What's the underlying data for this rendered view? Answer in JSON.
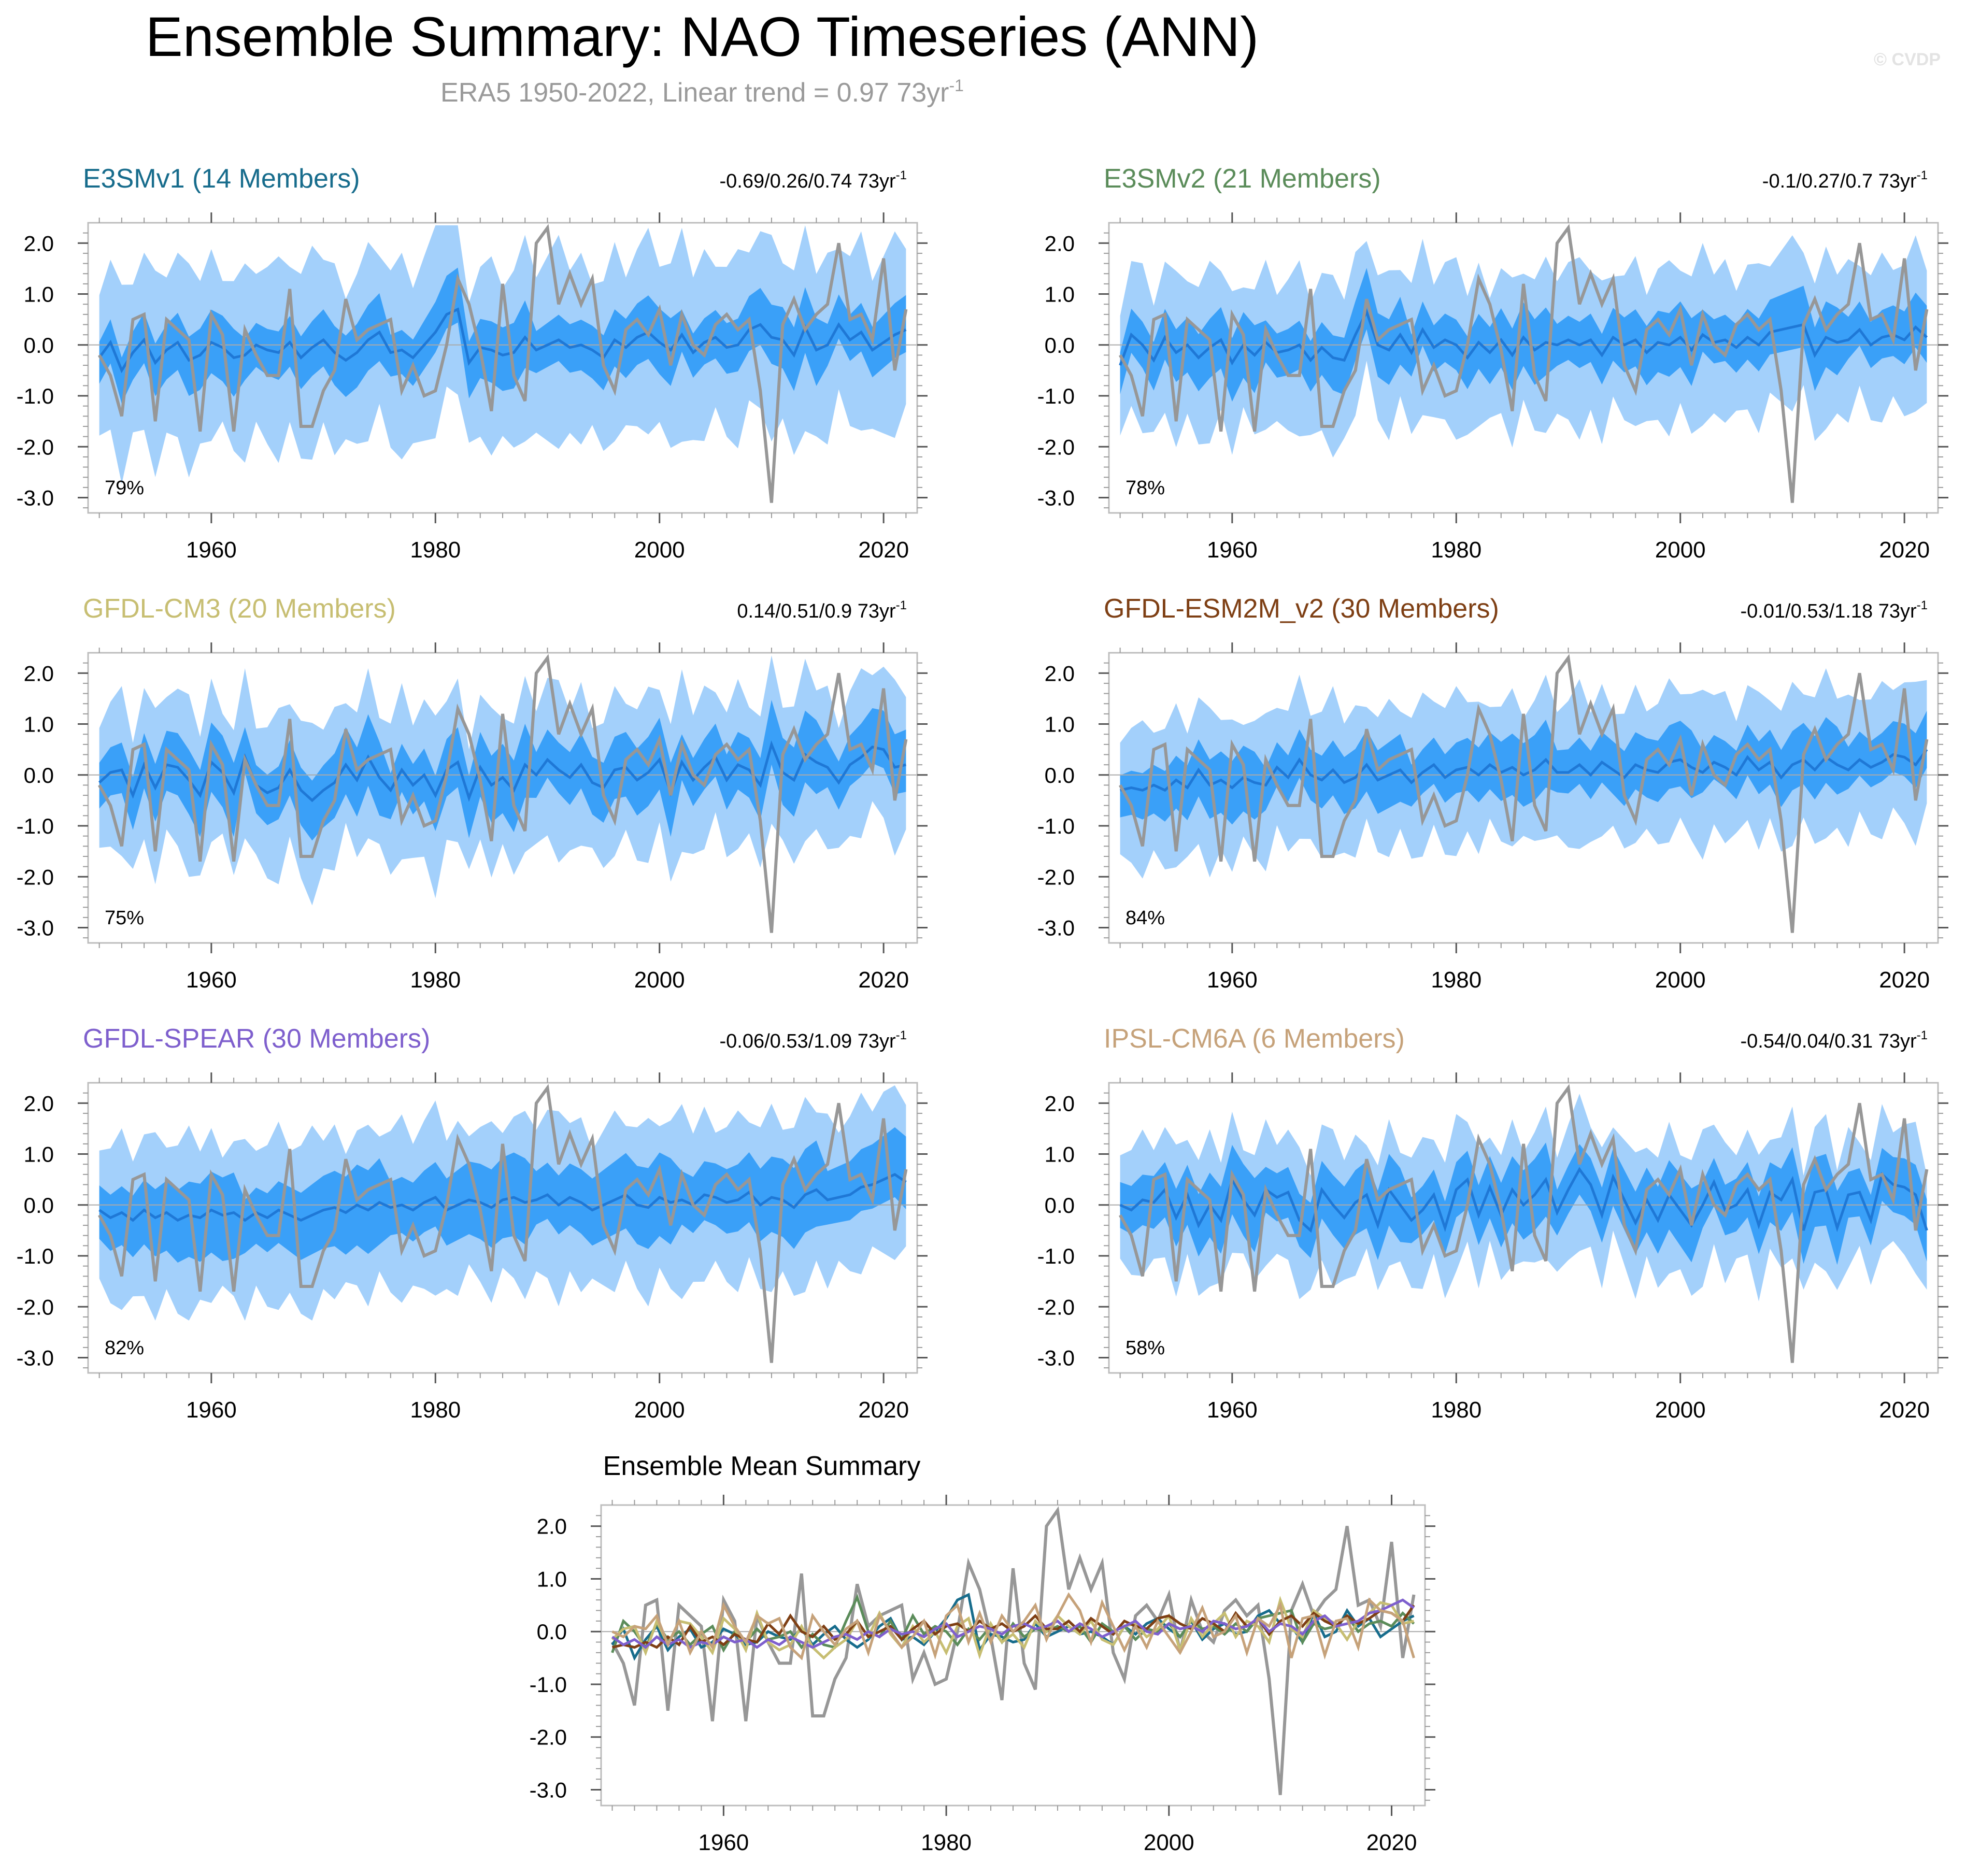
{
  "figure": {
    "title": "Ensemble Summary: NAO Timeseries (ANN)",
    "subtitle_main": "ERA5 1950-2022, Linear trend = 0.97 73yr",
    "subtitle_sup": "-1",
    "watermark": "© CVDP"
  },
  "colors": {
    "outer_band": "#a3d0fb",
    "inner_band": "#3aa0f8",
    "ens_mean": "#1f78d6",
    "obs": "#979797",
    "axis": "#000000",
    "zero_line": "#aaaaaa"
  },
  "chart_data": {
    "type": "area",
    "x_start": 1950,
    "x_end": 2022,
    "xlim": [
      1949,
      2023
    ],
    "ylim": [
      -3.3,
      2.4
    ],
    "x_ticks": [
      "1960",
      "1980",
      "2000",
      "2020"
    ],
    "x_tick_values": [
      1960,
      1980,
      2000,
      2020
    ],
    "y_ticks": [
      "2.0",
      "1.0",
      "0.0",
      "-1.0",
      "-2.0",
      "-3.0"
    ],
    "y_tick_values": [
      2,
      1,
      0,
      -1,
      -2,
      -3
    ],
    "trend_sup": "-1",
    "observed": [
      -0.2,
      -0.6,
      -1.4,
      0.5,
      0.6,
      -1.5,
      0.5,
      0.3,
      0.1,
      -1.7,
      0.6,
      0.2,
      -1.7,
      0.3,
      -0.2,
      -0.6,
      -0.6,
      1.1,
      -1.6,
      -1.6,
      -0.9,
      -0.5,
      0.9,
      0.1,
      0.3,
      0.4,
      0.5,
      -0.9,
      -0.4,
      -1.0,
      -0.9,
      0.0,
      1.3,
      0.8,
      -0.1,
      -1.3,
      1.2,
      -0.6,
      -1.1,
      2.0,
      2.3,
      0.8,
      1.4,
      0.8,
      1.3,
      -0.4,
      -0.9,
      0.3,
      0.5,
      0.2,
      0.7,
      -0.4,
      0.6,
      0.0,
      -0.2,
      0.4,
      0.6,
      0.3,
      0.5,
      -0.9,
      -3.1,
      0.4,
      0.9,
      0.3,
      0.6,
      0.8,
      2.0,
      0.5,
      0.6,
      0.1,
      1.7,
      -0.5,
      0.7
    ],
    "panels": [
      {
        "name": "E3SMv1",
        "title": "E3SMv1 (14 Members)",
        "color": "#176c8c",
        "trend": "-0.69/0.26/0.74 73yr",
        "pct": "79%",
        "ens_mean": [
          -0.25,
          0.05,
          -0.5,
          -0.15,
          0.1,
          -0.35,
          -0.1,
          0.05,
          -0.3,
          -0.2,
          0.05,
          -0.05,
          -0.25,
          -0.2,
          0.0,
          -0.1,
          -0.15,
          0.05,
          -0.25,
          -0.05,
          0.1,
          -0.15,
          -0.3,
          -0.15,
          0.1,
          0.25,
          -0.15,
          -0.1,
          -0.25,
          0.0,
          0.25,
          0.6,
          0.7,
          -0.35,
          -0.05,
          -0.1,
          -0.2,
          -0.15,
          0.15,
          -0.1,
          0.0,
          0.1,
          -0.05,
          0.0,
          -0.1,
          -0.25,
          0.1,
          -0.05,
          0.15,
          0.25,
          0.05,
          -0.1,
          0.2,
          -0.15,
          0.05,
          0.15,
          -0.05,
          0.0,
          0.3,
          0.4,
          0.15,
          0.1,
          -0.2,
          0.35,
          -0.1,
          0.0,
          0.4,
          0.1,
          0.25,
          -0.1,
          0.05,
          0.2,
          0.3
        ],
        "spread_inner": 0.55,
        "spread_outer": 1.7,
        "mean_scale": 1.4
      },
      {
        "name": "E3SMv2",
        "title": "E3SMv2 (21 Members)",
        "color": "#5b8c5a",
        "trend": "-0.1/0.27/0.7 73yr",
        "pct": "78%",
        "ens_mean": [
          -0.4,
          0.2,
          0.0,
          -0.3,
          0.15,
          -0.15,
          0.0,
          -0.25,
          -0.05,
          0.1,
          -0.35,
          0.0,
          -0.2,
          0.05,
          -0.15,
          -0.1,
          0.0,
          -0.3,
          -0.05,
          -0.25,
          -0.3,
          0.2,
          0.65,
          0.0,
          -0.1,
          0.2,
          -0.15,
          0.3,
          -0.05,
          0.1,
          0.0,
          -0.25,
          0.05,
          -0.15,
          0.1,
          -0.2,
          0.15,
          -0.1,
          0.05,
          0.0,
          0.1,
          0.0,
          0.1,
          -0.2,
          0.15,
          0.0,
          0.1,
          -0.15,
          0.05,
          0.0,
          0.15,
          -0.1,
          0.2,
          0.05,
          0.1,
          -0.05,
          0.15,
          0.0,
          0.25,
          0.3,
          0.35,
          0.4,
          -0.2,
          0.15,
          0.05,
          0.1,
          0.3,
          0.0,
          0.15,
          0.2,
          0.1,
          0.35,
          0.15
        ],
        "spread_inner": 0.55,
        "spread_outer": 1.45,
        "mean_scale": 1.4
      },
      {
        "name": "GFDL-CM3",
        "title": "GFDL-CM3 (20 Members)",
        "color": "#c7be72",
        "trend": "0.14/0.51/0.9 73yr",
        "pct": "75%",
        "ens_mean": [
          -0.15,
          0.05,
          0.1,
          -0.4,
          0.2,
          -0.25,
          0.2,
          0.15,
          -0.1,
          -0.4,
          0.25,
          0.05,
          -0.35,
          0.35,
          -0.2,
          -0.35,
          -0.25,
          0.1,
          -0.3,
          -0.5,
          -0.3,
          -0.15,
          0.2,
          -0.1,
          0.35,
          -0.05,
          -0.3,
          0.1,
          -0.2,
          0.0,
          -0.4,
          0.1,
          0.25,
          -0.45,
          0.15,
          -0.2,
          -0.05,
          -0.3,
          0.2,
          0.0,
          0.3,
          0.1,
          -0.05,
          0.2,
          -0.15,
          -0.25,
          0.1,
          0.15,
          -0.1,
          0.05,
          0.3,
          -0.35,
          0.25,
          -0.1,
          0.15,
          0.35,
          -0.1,
          0.2,
          0.1,
          -0.2,
          0.6,
          0.05,
          -0.1,
          0.4,
          0.25,
          0.15,
          -0.15,
          0.2,
          0.35,
          0.55,
          0.5,
          0.15,
          0.2
        ],
        "spread_inner": 0.6,
        "spread_outer": 1.45,
        "mean_scale": 1.4
      },
      {
        "name": "GFDL-ESM2M_v2",
        "title": "GFDL-ESM2M_v2 (30 Members)",
        "color": "#7e3f14",
        "trend": "-0.01/0.53/1.18 73yr",
        "pct": "84%",
        "ens_mean": [
          -0.3,
          -0.25,
          -0.3,
          -0.2,
          -0.3,
          -0.1,
          -0.25,
          0.1,
          -0.2,
          -0.1,
          -0.25,
          -0.05,
          -0.15,
          -0.2,
          0.15,
          -0.05,
          0.3,
          0.0,
          -0.1,
          0.1,
          -0.15,
          -0.05,
          0.2,
          -0.1,
          0.0,
          0.1,
          -0.15,
          0.05,
          0.2,
          -0.05,
          0.1,
          0.15,
          0.0,
          0.2,
          0.05,
          0.15,
          0.0,
          0.1,
          0.3,
          0.05,
          0.05,
          0.2,
          0.0,
          0.25,
          0.1,
          -0.05,
          0.2,
          0.1,
          0.05,
          0.25,
          0.3,
          0.15,
          0.05,
          0.25,
          0.15,
          0.0,
          0.35,
          0.1,
          0.25,
          -0.05,
          0.2,
          0.3,
          0.1,
          0.35,
          0.2,
          0.1,
          0.3,
          0.15,
          0.25,
          0.4,
          0.35,
          0.2,
          0.5
        ],
        "spread_inner": 0.55,
        "spread_outer": 1.35,
        "mean_scale": 1.4
      },
      {
        "name": "GFDL-SPEAR",
        "title": "GFDL-SPEAR (30 Members)",
        "color": "#7e5fcd",
        "trend": "-0.06/0.53/1.09 73yr",
        "pct": "82%",
        "ens_mean": [
          -0.1,
          -0.25,
          -0.15,
          -0.3,
          -0.1,
          -0.25,
          -0.15,
          -0.3,
          -0.2,
          -0.25,
          -0.1,
          -0.2,
          -0.15,
          -0.3,
          -0.15,
          -0.25,
          -0.1,
          -0.2,
          -0.3,
          -0.2,
          -0.1,
          -0.05,
          -0.15,
          0.0,
          -0.1,
          0.05,
          -0.05,
          0.0,
          -0.1,
          0.05,
          0.15,
          -0.1,
          0.0,
          0.1,
          0.05,
          -0.05,
          0.1,
          0.15,
          0.05,
          0.1,
          0.2,
          0.0,
          0.15,
          0.05,
          -0.1,
          0.0,
          0.1,
          0.2,
          0.0,
          -0.05,
          0.15,
          0.05,
          0.1,
          0.0,
          0.2,
          0.15,
          0.05,
          0.1,
          0.25,
          0.0,
          0.15,
          0.1,
          -0.05,
          0.2,
          0.3,
          0.1,
          0.15,
          0.2,
          0.35,
          0.4,
          0.5,
          0.6,
          0.45
        ],
        "spread_inner": 0.7,
        "spread_outer": 1.55,
        "mean_scale": 1.4
      },
      {
        "name": "IPSL-CM6A",
        "title": "IPSL-CM6A (6 Members)",
        "color": "#c6a27a",
        "trend": "-0.54/0.04/0.31 73yr",
        "pct": "58%",
        "ens_mean": [
          0.0,
          -0.1,
          0.1,
          0.05,
          0.3,
          -0.25,
          0.2,
          -0.4,
          0.0,
          -0.3,
          0.5,
          0.1,
          -0.2,
          0.3,
          0.15,
          0.25,
          -0.3,
          -0.5,
          0.3,
          0.0,
          -0.25,
          0.05,
          0.2,
          -0.4,
          0.3,
          0.0,
          -0.3,
          -0.1,
          0.2,
          -0.45,
          0.3,
          0.5,
          -0.2,
          0.35,
          -0.2,
          0.3,
          0.0,
          0.2,
          0.5,
          -0.15,
          0.3,
          0.7,
          0.4,
          -0.2,
          0.55,
          0.1,
          -0.35,
          0.1,
          -0.3,
          0.2,
          -0.1,
          -0.4,
          0.0,
          0.45,
          -0.1,
          0.0,
          0.3,
          -0.4,
          0.25,
          0.1,
          0.5,
          -0.5,
          0.25,
          0.3,
          -0.45,
          0.2,
          0.25,
          -0.3,
          0.6,
          0.4,
          0.35,
          0.2,
          -0.5
        ],
        "spread_inner": 0.6,
        "spread_outer": 1.25,
        "mean_scale": 1.0
      }
    ],
    "summary": {
      "title": "Ensemble Mean Summary"
    }
  }
}
